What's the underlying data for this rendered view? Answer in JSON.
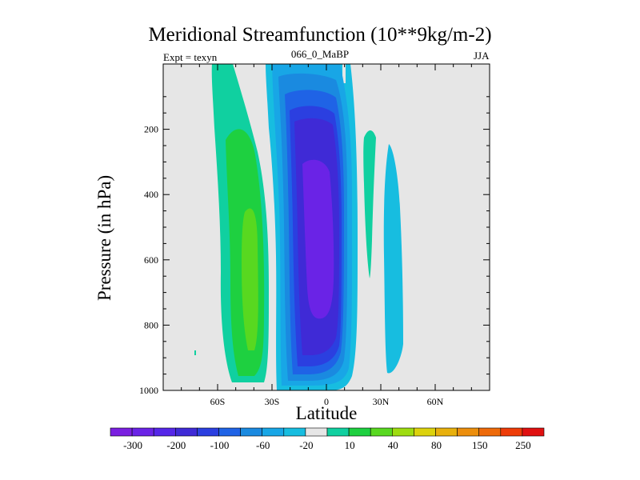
{
  "title": "Meridional Streamfunction (10**9kg/m-2)",
  "left_string": "Expt = texyn",
  "center_string": "066_0_MaBP",
  "right_string": "JJA",
  "colorbar_labels": [
    "-300",
    "-200",
    "-100",
    "-60",
    "-20",
    "10",
    "40",
    "80",
    "150",
    "250"
  ],
  "colors": {
    "plot_background": "#e6e6e6",
    "levels": [
      "#7a1fe0",
      "#6a23e6",
      "#5526e8",
      "#3f2ad6",
      "#2b3fe0",
      "#1f63e6",
      "#1a8ae0",
      "#18a6e6",
      "#17bde0",
      "#e6e6e6",
      "#10d0a0",
      "#1ed040",
      "#58d820",
      "#9edc10",
      "#dcd20c",
      "#e8b00c",
      "#ec8e0c",
      "#ee6a0a",
      "#ee3c08",
      "#e01010"
    ]
  },
  "chart_data": {
    "type": "contour",
    "title": "Meridional Streamfunction (10**9kg/m-2)",
    "xlabel": "Latitude",
    "ylabel": "Pressure (in hPa)",
    "x_ticks": [
      "60S",
      "30S",
      "0",
      "30N",
      "60N"
    ],
    "x_tick_values": [
      -60,
      -30,
      0,
      30,
      60
    ],
    "xlim": [
      -90,
      90
    ],
    "y_ticks": [
      "200",
      "400",
      "600",
      "800",
      "1000"
    ],
    "y_tick_values": [
      200,
      400,
      600,
      800,
      1000
    ],
    "ylim": [
      1000,
      0
    ],
    "contour_levels": [
      -300,
      -250,
      -200,
      -150,
      -100,
      -80,
      -60,
      -40,
      -20,
      0,
      10,
      20,
      40,
      60,
      80,
      100,
      150,
      200,
      250,
      300
    ],
    "features": [
      {
        "name": "southern cell",
        "sign": "positive",
        "lat_range": [
          -62,
          -25
        ],
        "p_range": [
          20,
          990
        ],
        "max_value": 80,
        "max_center": [
          -42,
          650
        ]
      },
      {
        "name": "tropical cell",
        "sign": "negative",
        "lat_range": [
          -28,
          18
        ],
        "p_range": [
          20,
          1000
        ],
        "min_value": -300,
        "min_center": [
          -4,
          650
        ]
      },
      {
        "name": "northern positive band",
        "sign": "positive",
        "lat_range": [
          20,
          27
        ],
        "p_range": [
          180,
          640
        ]
      },
      {
        "name": "northern negative band",
        "sign": "negative",
        "lat_range": [
          30,
          40
        ],
        "p_range": [
          230,
          930
        ]
      }
    ]
  }
}
